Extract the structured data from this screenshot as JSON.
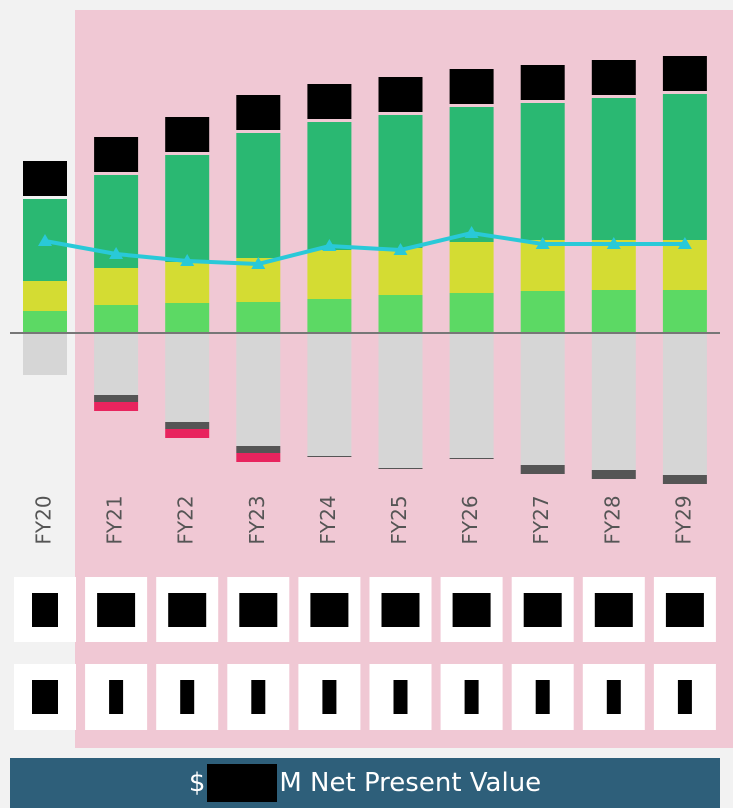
{
  "chart_data": {
    "type": "bar",
    "categories": [
      "FY20",
      "FY21",
      "FY22",
      "FY23",
      "FY24",
      "FY25",
      "FY26",
      "FY27",
      "FY28",
      "FY29"
    ],
    "ylim": [
      -152,
      323
    ],
    "series": [
      {
        "color": "#5cd964",
        "values": [
          22,
          28,
          30,
          31,
          34,
          38,
          40,
          42,
          43,
          43
        ]
      },
      {
        "color": "#d4dc33",
        "values": [
          30,
          37,
          41,
          44,
          49,
          47,
          51,
          51,
          50,
          50
        ]
      },
      {
        "color": "#2ab872",
        "values": [
          82,
          93,
          107,
          125,
          128,
          133,
          135,
          137,
          142,
          146
        ]
      },
      {
        "color": "#d6d6d6",
        "values": [
          -42,
          -62,
          -89,
          -113,
          -123,
          -135,
          -125,
          -132,
          -137,
          -142
        ]
      },
      {
        "color": "#555555",
        "values": [
          0,
          -7,
          -7,
          -7,
          -1,
          -1,
          -1,
          -9,
          -9,
          -9
        ]
      },
      {
        "color": "#e8245e",
        "values": [
          0,
          -9,
          -9,
          -9,
          0,
          0,
          0,
          0,
          0,
          0
        ]
      },
      {
        "type": "line",
        "color": "#29c9d8",
        "values": [
          92,
          79,
          72,
          69,
          87,
          83,
          100,
          89,
          89,
          89
        ]
      }
    ]
  },
  "footer": {
    "prefix": "$",
    "text": "M Net Present Value"
  }
}
